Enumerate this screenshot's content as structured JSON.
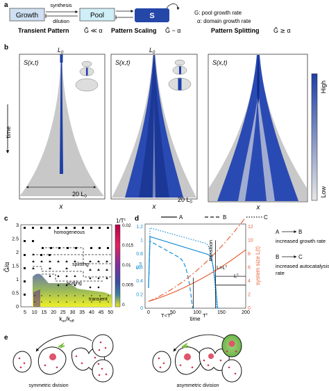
{
  "panel_a": {
    "letter": "a",
    "growth": "Growth",
    "pool": "Pool",
    "s": "S",
    "synthesis": "synthesis",
    "dilution": "dilution",
    "legend_g": "G: pool growth rate",
    "legend_alpha": "α: domain growth rate"
  },
  "panel_b": {
    "letter": "b",
    "title1": "Transient Pattern",
    "cond1": "Ğ ≪ α",
    "title2": "Pattern Scaling",
    "cond2": "Ğ ~ α",
    "title3": "Pattern Splitting",
    "cond3": "Ğ ≳ α",
    "s_label": "S(x,t)",
    "l0": "L",
    "l0_sub": "0",
    "time": "time",
    "x": "x",
    "scale1": "20 L",
    "scale2": "20 L",
    "scale_sub": "0",
    "colorbar_high": "High",
    "colorbar_low": "Low",
    "colors": {
      "blue": "#1d3fa6",
      "grey": "#c8c8c8"
    }
  },
  "panel_c": {
    "letter": "c",
    "ylabel": "Ğ/α",
    "xlabel": "k_on/k_off",
    "xticks": [
      "5",
      "10",
      "15",
      "20",
      "25",
      "30",
      "35",
      "40",
      "45",
      "50"
    ],
    "yticks": [
      "0",
      "0.5",
      "1",
      "1.5",
      "2",
      "2.5",
      "3"
    ],
    "colorbar_title": "1/T",
    "colorbar_sup": "c",
    "colorbar_ticks": [
      "0.02",
      "0.015",
      "0.01",
      "0.005",
      "0"
    ],
    "region_homogeneous": "homogeneous",
    "region_splitting": "splitting",
    "region_scaling": "scaling",
    "region_transient": "transient"
  },
  "panel_d": {
    "letter": "d",
    "legend": [
      "A",
      "B",
      "C"
    ],
    "ylabel_left": "S",
    "ylabel_left_sub": "tot",
    "ylabel_right": "system size L(t)",
    "xlabel": "time",
    "xticks": [
      "0",
      "50",
      "100",
      "150",
      "200"
    ],
    "yticks_left": [
      "0",
      "0.2",
      "0.4",
      "0.6",
      "0.8",
      "1",
      "1.2"
    ],
    "yticks_right": [
      "0",
      "2",
      "4",
      "6",
      "8",
      "10",
      "12"
    ],
    "transition": "transition",
    "l_gt_lc": "L>L",
    "lc": "L",
    "t_lt_tc": "T<T",
    "tc": "T",
    "sup_c": "c",
    "note_ab_from": "A",
    "note_ab_to": "B",
    "note_ab": "increased growth rate",
    "note_bc_from": "B",
    "note_bc_to": "C",
    "note_bc1": "increased autocatalysis",
    "note_bc2": "rate",
    "colors": {
      "blue": "#1a8fd6",
      "orange": "#e8623a"
    }
  },
  "panel_e": {
    "letter": "e",
    "caption_left": "symmetric division",
    "caption_right": "asymmetric division"
  }
}
